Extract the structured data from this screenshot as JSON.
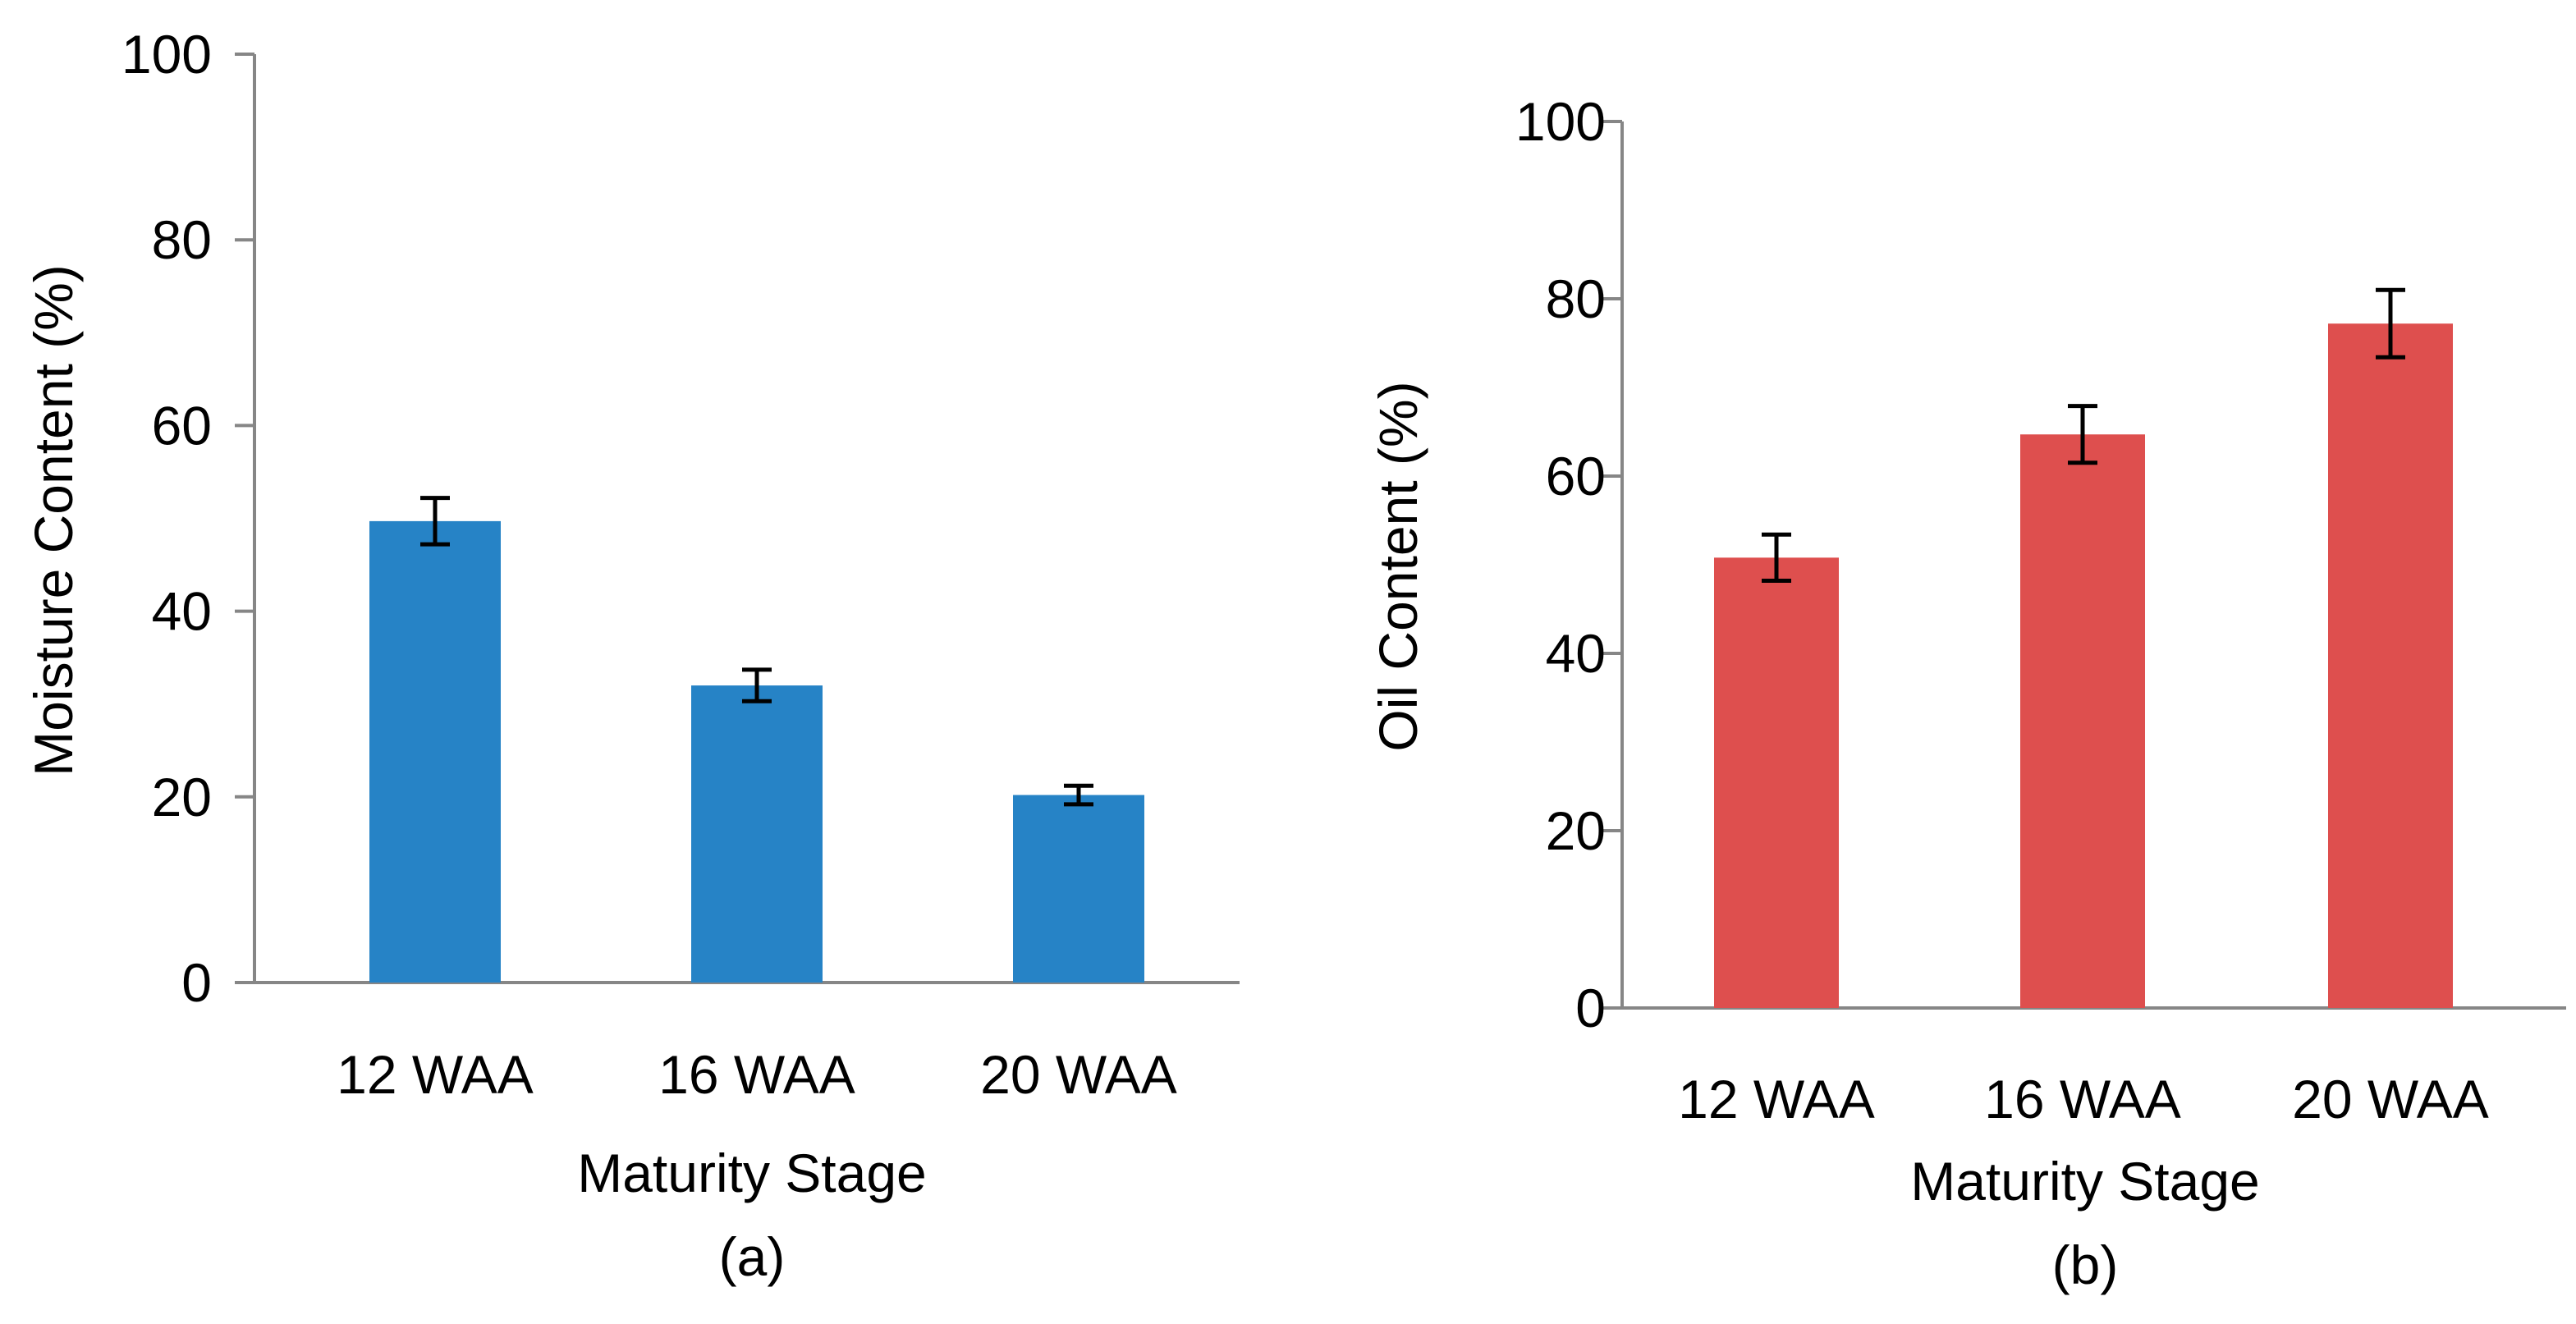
{
  "chart_data": [
    {
      "type": "bar",
      "panel_label": "(a)",
      "categories": [
        "12 WAA",
        "16 WAA",
        "20 WAA"
      ],
      "values": [
        49.7,
        32.0,
        20.2
      ],
      "errors": [
        2.5,
        1.7,
        1.0
      ],
      "xlabel": "Maturity Stage",
      "ylabel": "Moisture Content (%)",
      "ylim": [
        0,
        100
      ],
      "yticks": [
        "0",
        "20",
        "40",
        "60",
        "80",
        "100"
      ],
      "bar_color": "#2683C6",
      "grid": false
    },
    {
      "type": "bar",
      "panel_label": "(b)",
      "categories": [
        "12 WAA",
        "16 WAA",
        "20 WAA"
      ],
      "values": [
        50.8,
        64.7,
        77.2
      ],
      "errors": [
        2.6,
        3.2,
        3.8
      ],
      "xlabel": "Maturity Stage",
      "ylabel": "Oil Content (%)",
      "ylim": [
        0,
        100
      ],
      "yticks": [
        "0",
        "20",
        "40",
        "60",
        "80",
        "100"
      ],
      "bar_color": "#DE4F4E",
      "grid": false
    }
  ],
  "colors": {
    "axis": "#868686",
    "error_bar": "#000000"
  }
}
